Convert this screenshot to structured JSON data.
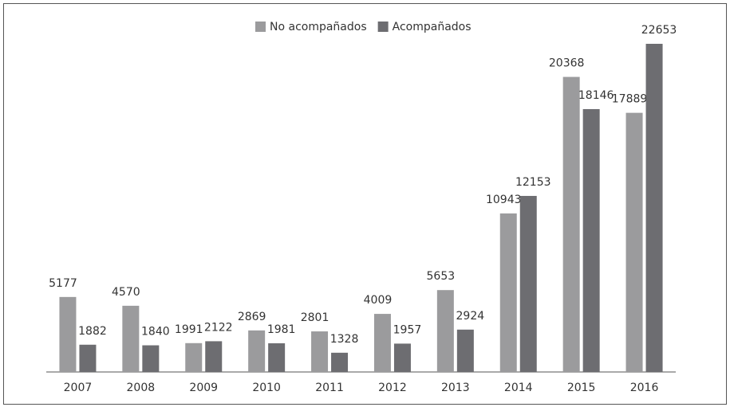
{
  "chart_data": {
    "type": "bar",
    "categories": [
      "2007",
      "2008",
      "2009",
      "2010",
      "2011",
      "2012",
      "2013",
      "2014",
      "2015",
      "2016"
    ],
    "series": [
      {
        "name": "No acompañados",
        "color": "#9b9b9d",
        "values": [
          5177,
          4570,
          1991,
          2869,
          2801,
          4009,
          5653,
          10943,
          20368,
          17889
        ]
      },
      {
        "name": "Acompañados",
        "color": "#6d6d71",
        "values": [
          1882,
          1840,
          2122,
          1981,
          1328,
          1957,
          2924,
          12153,
          18146,
          22653
        ]
      }
    ],
    "legend": "top"
  }
}
